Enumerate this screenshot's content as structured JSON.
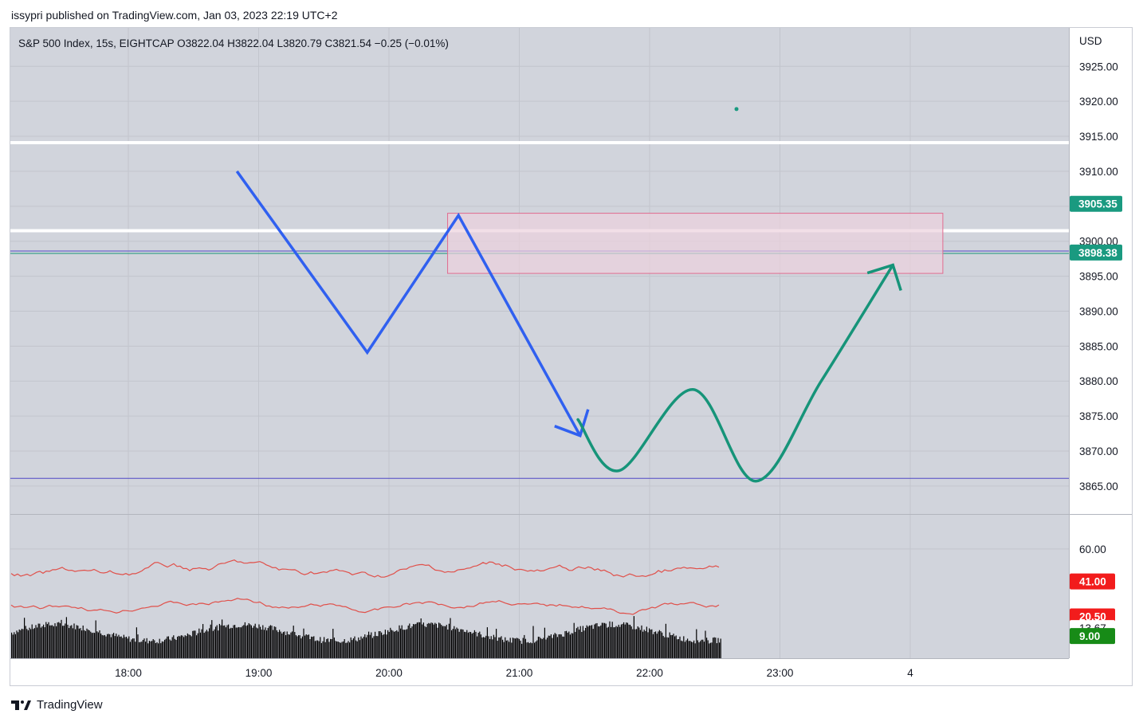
{
  "publish_line": "issypri published on TradingView.com, Jan 03, 2023 22:19 UTC+2",
  "footer_brand": "TradingView",
  "colors": {
    "pane_bg": "#d1d4dc",
    "grid": "#c2c5cd",
    "blue_arrow": "#3060f0",
    "green_arrow": "#169479",
    "zone_fill": "#ecd2dd",
    "zone_border": "#e06b8e",
    "level_lines": "#ffffff",
    "horizontal_line": "#5048c6",
    "rsi_line": "#e0504a",
    "volume": "#000000",
    "badge_green": "#1a9a80",
    "badge_red": "#f21c1c",
    "badge_darkgreen": "#178b17"
  },
  "chart_data": {
    "type": "line",
    "title": "S&P 500 Index, 15s, EIGHTCAP",
    "ohlc_legend": {
      "symbol": "S&P 500 Index, 15s, EIGHTCAP",
      "open": "O3822.04",
      "high": "H3822.04",
      "low": "L3820.79",
      "close": "C3821.54",
      "change": "−0.25 (−0.01%)"
    },
    "currency": "USD",
    "x_ticks": [
      "18:00",
      "19:00",
      "20:00",
      "21:00",
      "22:00",
      "23:00",
      "4"
    ],
    "y_ticks": [
      3925,
      3920,
      3915,
      3910,
      3905,
      3900,
      3895,
      3890,
      3885,
      3880,
      3875,
      3870,
      3865
    ],
    "y_tick_labels": [
      "3925.00",
      "3920.00",
      "3915.00",
      "3910.00",
      "3905.00",
      "3900.00",
      "3895.00",
      "3890.00",
      "3885.00",
      "3880.00",
      "3875.00",
      "3870.00",
      "3865.00"
    ],
    "ylim": [
      3861,
      3930.5
    ],
    "price_badges": [
      {
        "value": "3905.35",
        "price": 3905.35,
        "style": "green"
      },
      {
        "value": "3898.38",
        "price": 3898.38,
        "style": "green"
      }
    ],
    "last_point": {
      "time": "22:40",
      "price": 3918.9
    },
    "horizontal_levels": [
      {
        "price": 3914.1,
        "style": "white"
      },
      {
        "price": 3901.5,
        "style": "white"
      },
      {
        "price": 3898.6,
        "style": "thin"
      },
      {
        "price": 3866.1,
        "style": "thin"
      }
    ],
    "supply_zone": {
      "x_start": "20:27",
      "x_end": "24:15",
      "price_top": 3904.0,
      "price_bottom": 3895.4
    },
    "blue_path": [
      {
        "time": "18:50",
        "price": 3910.0
      },
      {
        "time": "19:50",
        "price": 3884.1
      },
      {
        "time": "20:32",
        "price": 3903.7
      },
      {
        "time": "21:28",
        "price": 3872.2
      }
    ],
    "green_path": [
      {
        "time": "21:27",
        "price": 3874.5
      },
      {
        "time": "21:46",
        "price": 3867.2
      },
      {
        "time": "22:20",
        "price": 3878.8
      },
      {
        "time": "22:49",
        "price": 3865.7
      },
      {
        "time": "23:19",
        "price": 3880.0
      },
      {
        "time": "23:52",
        "price": 3896.6
      }
    ],
    "indicator": {
      "y_ticks": [
        60
      ],
      "y_tick_labels": [
        "60.00"
      ],
      "ylim": [
        -4,
        80
      ],
      "badges": [
        {
          "value": "41.00",
          "level": 41,
          "style": "red"
        },
        {
          "value": "20.50",
          "level": 20.5,
          "style": "red"
        },
        {
          "value": "13.67",
          "level": 13.67,
          "style": "white"
        },
        {
          "value": "9.00",
          "level": 9,
          "style": "darkgreen"
        }
      ]
    }
  }
}
